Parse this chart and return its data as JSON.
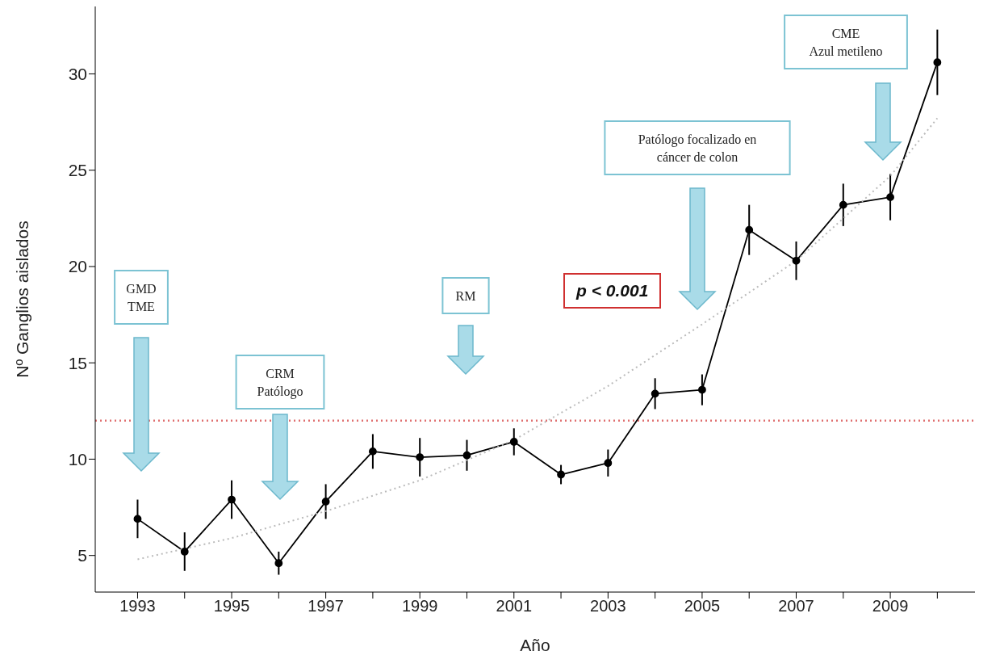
{
  "chart_data": {
    "type": "line",
    "xlabel": "Año",
    "ylabel": "Nº Ganglios aislados",
    "xlim": [
      1992.1,
      2010.8
    ],
    "ylim": [
      3.1,
      33.5
    ],
    "xticks": [
      1993,
      {
        "value": 1994,
        "label": null
      },
      1995,
      {
        "value": 1996,
        "label": null
      },
      1997,
      {
        "value": 1998,
        "label": null
      },
      1999,
      {
        "value": 2000,
        "label": null
      },
      2001,
      {
        "value": 2002,
        "label": null
      },
      2003,
      {
        "value": 2004,
        "label": null
      },
      2005,
      {
        "value": 2006,
        "label": null
      },
      2007,
      {
        "value": 2008,
        "label": null
      },
      2009,
      {
        "value": 2010,
        "label": null
      }
    ],
    "yticks": [
      5,
      10,
      15,
      20,
      25,
      30
    ],
    "grid": false,
    "marker": "circle",
    "series": [
      {
        "color": "#000000",
        "x": [
          1993,
          1994,
          1995,
          1996,
          1997,
          1998,
          1999,
          2000,
          2001,
          2002,
          2003,
          2004,
          2005,
          2006,
          2007,
          2008,
          2009,
          2010
        ],
        "values": [
          6.9,
          5.2,
          7.9,
          4.6,
          7.8,
          10.4,
          10.1,
          10.2,
          10.9,
          9.2,
          9.8,
          13.4,
          13.6,
          21.9,
          20.3,
          23.2,
          23.6,
          30.6
        ],
        "errors": [
          1.0,
          1.0,
          1.0,
          0.6,
          0.9,
          0.9,
          1.0,
          0.8,
          0.7,
          0.5,
          0.7,
          0.8,
          0.8,
          1.3,
          1.0,
          1.1,
          1.2,
          1.7
        ]
      },
      {
        "type": "line",
        "color": "#bbbbbb",
        "line_style": "dotted",
        "marker": "none",
        "x": [
          1993,
          1995,
          1997,
          1999,
          2001,
          2003,
          2005,
          2007,
          2009,
          2010
        ],
        "values": [
          4.8,
          5.9,
          7.3,
          8.9,
          11.0,
          13.8,
          17.0,
          20.3,
          24.7,
          27.7
        ]
      }
    ],
    "ref_lines": [
      {
        "axis": "y",
        "value": 12,
        "color": "#e07070",
        "line_style": "dotted"
      }
    ],
    "annotations": [
      "GMD\nTME",
      "CRM\nPatólogo",
      "RM",
      "Patólogo focalizado en\ncáncer de colon",
      "CME\nAzul metileno",
      "p < 0.001"
    ]
  }
}
